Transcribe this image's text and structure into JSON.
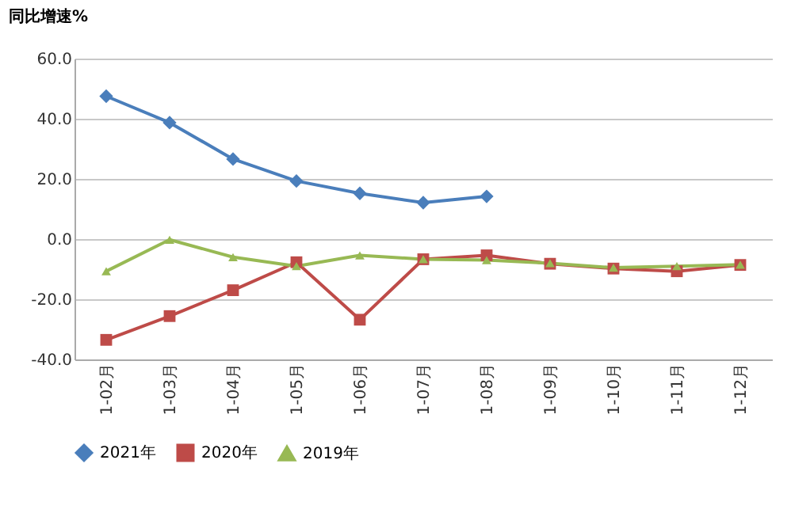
{
  "chart_data": {
    "type": "line",
    "ylabel": "同比增速%",
    "categories": [
      "1-02月",
      "1-03月",
      "1-04月",
      "1-05月",
      "1-06月",
      "1-07月",
      "1-08月",
      "1-09月",
      "1-10月",
      "1-11月",
      "1-12月"
    ],
    "series": [
      {
        "name": "2021年",
        "color": "#4a7ebb",
        "marker": "diamond",
        "values": [
          47.5,
          38.7,
          26.6,
          19.3,
          15.2,
          12.1,
          14.2,
          null,
          null,
          null,
          null
        ]
      },
      {
        "name": "2020年",
        "color": "#be4b48",
        "marker": "square",
        "values": [
          -33.5,
          -25.6,
          -17,
          -7.7,
          -26.8,
          -6.7,
          -5.4,
          -8.2,
          -9.8,
          -10.7,
          -8.6
        ]
      },
      {
        "name": "2019年",
        "color": "#98b954",
        "marker": "triangle",
        "values": [
          -10.7,
          -0.2,
          -6,
          -9,
          -5.4,
          -6.7,
          -7,
          -8,
          -9.5,
          -9,
          -8.5
        ]
      }
    ],
    "ylim": [
      -40,
      60
    ],
    "yticks": [
      {
        "value": -40,
        "label": "-40.0"
      },
      {
        "value": -20,
        "label": "-20.0"
      },
      {
        "value": 0,
        "label": "0.0"
      },
      {
        "value": 20,
        "label": "20.0"
      },
      {
        "value": 40,
        "label": "40.0"
      },
      {
        "value": 60,
        "label": "60.0"
      }
    ],
    "grid": "y",
    "legend": "bottom",
    "line_style": "solid"
  }
}
